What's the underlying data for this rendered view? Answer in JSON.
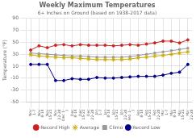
{
  "chart_data": {
    "type": "line",
    "title": "Weekly Maximum Temperatures",
    "subtitle": "6+ Inches on Ground (based on 1938-2017 data)",
    "ylabel": "Temperature (°F)",
    "categories": [
      "Nov\n1-7",
      "Nov\n8-14",
      "Nov\n15-21",
      "Nov\n22-28",
      "Dec 1-\n7",
      "Dec\n8-14",
      "Dec\n15-21",
      "Dec\n22-28",
      "Jan\n1-7",
      "Jan\n8-14",
      "Jan\n15-21",
      "Jan\n22-28",
      "Feb 1-\n7",
      "Feb\n8-14",
      "Feb\n15-21",
      "Feb\n22-28",
      "Mar\n1-7",
      "Mar\n8-14",
      "Mar\n15-21",
      "Mar\n22-28"
    ],
    "series": [
      {
        "name": "Record High",
        "color": "#cc2222",
        "marker": "circle",
        "values": [
          37,
          44,
          41,
          45,
          46,
          44,
          46,
          45,
          45,
          45,
          44,
          45,
          46,
          45,
          47,
          49,
          52,
          52,
          49,
          54
        ]
      },
      {
        "name": "Average",
        "color": "#ccaa00",
        "marker": "star",
        "values": [
          29,
          27,
          26,
          25,
          24,
          24,
          23,
          22,
          21,
          21,
          21,
          21,
          22,
          24,
          25,
          27,
          28,
          30,
          32,
          34
        ]
      },
      {
        "name": "Climo",
        "color": "#999999",
        "marker": "square",
        "values": [
          32,
          31,
          30,
          29,
          28,
          27,
          27,
          26,
          25,
          25,
          25,
          25,
          26,
          28,
          30,
          32,
          34,
          36,
          38,
          40
        ]
      },
      {
        "name": "Record Low",
        "color": "#00008b",
        "marker": "circle",
        "values": [
          13,
          13,
          13,
          -14,
          -14,
          -11,
          -12,
          -12,
          -9,
          -10,
          -10,
          -9,
          -8,
          -7,
          -7,
          -7,
          -5,
          -2,
          0,
          13
        ]
      }
    ],
    "ylim": [
      -50,
      90
    ],
    "yticks": [
      -50,
      -30,
      -10,
      10,
      30,
      50,
      70,
      90
    ],
    "grid": true,
    "legend": "bottom"
  }
}
